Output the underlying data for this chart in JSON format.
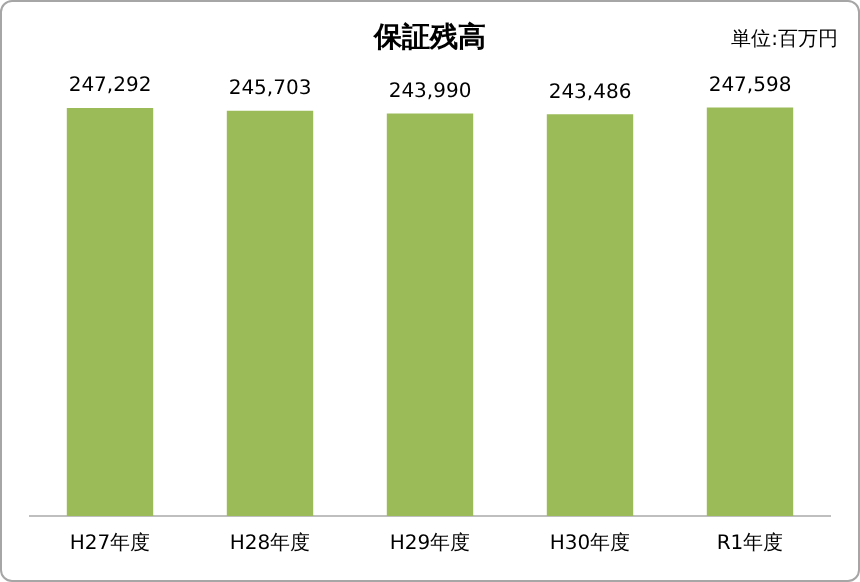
{
  "chart_data": {
    "type": "bar",
    "title": "保証残高",
    "annotations": [
      "単位:百万円"
    ],
    "categories": [
      "H27年度",
      "H28年度",
      "H29年度",
      "H30年度",
      "R1年度"
    ],
    "values": [
      247292,
      245703,
      243990,
      243486,
      247598
    ],
    "color": "#9bbb59",
    "value_labels": [
      "247,292",
      "245,703",
      "243,990",
      "243,486",
      "247,598"
    ],
    "tick_labels": "x",
    "grid": false,
    "legend": false
  }
}
